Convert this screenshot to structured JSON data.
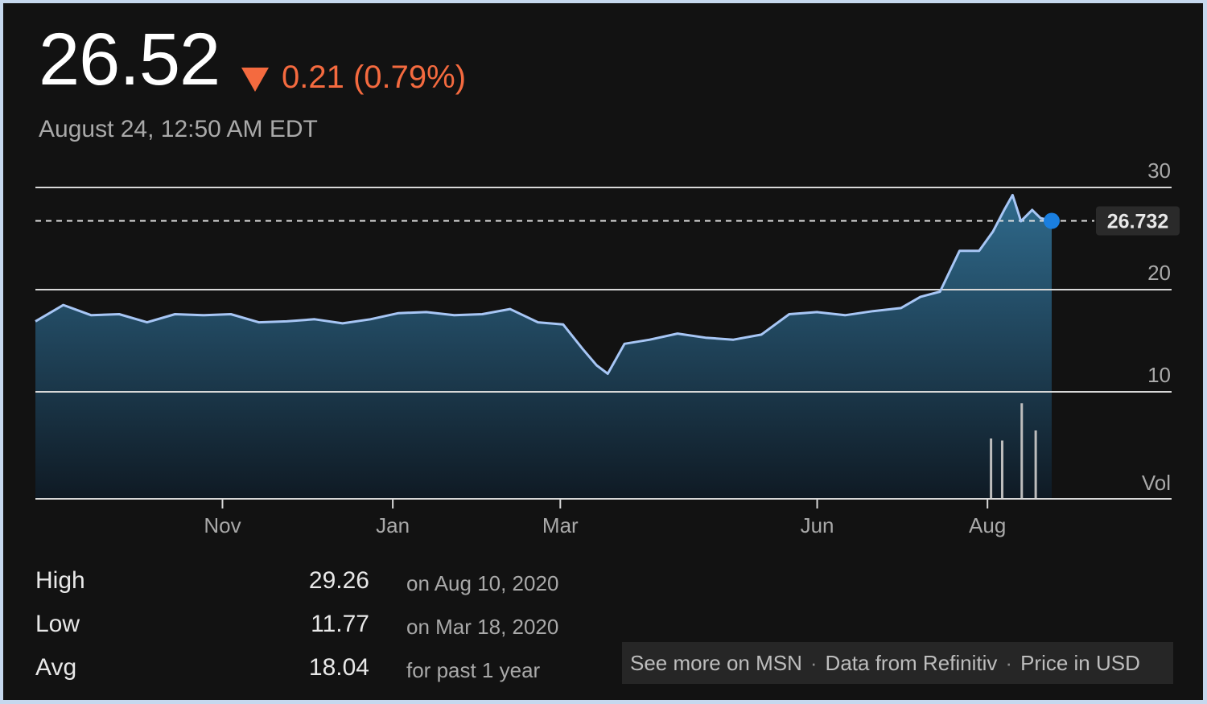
{
  "quote": {
    "price": "26.52",
    "change_text": "0.21 (0.79%)",
    "direction": "down",
    "down_color": "#f46a3f",
    "timestamp": "August 24, 12:50 AM EDT"
  },
  "chart_data": {
    "type": "area",
    "y_ticks": [
      "30",
      "20",
      "10"
    ],
    "y_range": [
      0,
      30
    ],
    "x_labels": [
      "Nov",
      "Jan",
      "Mar",
      "Jun",
      "Aug"
    ],
    "volume_label": "Vol",
    "reference_value": "26.732",
    "x": [
      "2019-08-26",
      "2019-09-05",
      "2019-09-15",
      "2019-09-25",
      "2019-10-05",
      "2019-10-15",
      "2019-10-25",
      "2019-11-04",
      "2019-11-14",
      "2019-11-24",
      "2019-12-04",
      "2019-12-14",
      "2019-12-24",
      "2020-01-03",
      "2020-01-13",
      "2020-01-23",
      "2020-02-02",
      "2020-02-12",
      "2020-02-22",
      "2020-03-02",
      "2020-03-09",
      "2020-03-14",
      "2020-03-18",
      "2020-03-24",
      "2020-04-02",
      "2020-04-12",
      "2020-04-22",
      "2020-05-02",
      "2020-05-12",
      "2020-05-22",
      "2020-06-01",
      "2020-06-11",
      "2020-06-21",
      "2020-07-01",
      "2020-07-08",
      "2020-07-15",
      "2020-07-22",
      "2020-07-29",
      "2020-08-03",
      "2020-08-07",
      "2020-08-10",
      "2020-08-13",
      "2020-08-17",
      "2020-08-20",
      "2020-08-24"
    ],
    "series": [
      {
        "values": [
          16.9,
          18.5,
          17.5,
          17.6,
          16.8,
          17.6,
          17.5,
          17.6,
          16.8,
          16.9,
          17.1,
          16.7,
          17.1,
          17.7,
          17.8,
          17.5,
          17.6,
          18.1,
          16.8,
          16.6,
          14.2,
          12.6,
          11.77,
          14.7,
          15.1,
          15.7,
          15.3,
          15.1,
          15.6,
          17.6,
          17.8,
          17.5,
          17.9,
          18.2,
          19.3,
          19.8,
          23.8,
          23.8,
          25.7,
          27.8,
          29.26,
          26.7,
          27.8,
          27.0,
          26.73
        ]
      }
    ],
    "volume_bars": [
      0.6,
      0.58,
      0.95,
      0.68
    ],
    "line_color": "#a7c6f5",
    "fill_top_color": "#2f6a8c",
    "marker_color": "#1a7fe0"
  },
  "stats": [
    {
      "label": "High",
      "value": "29.26",
      "note": "on Aug 10, 2020"
    },
    {
      "label": "Low",
      "value": "11.77",
      "note": "on Mar 18, 2020"
    },
    {
      "label": "Avg",
      "value": "18.04",
      "note": "for past 1 year"
    }
  ],
  "footer": {
    "msn": "See more on MSN",
    "source": "Data from Refinitiv",
    "currency": "Price in USD"
  }
}
